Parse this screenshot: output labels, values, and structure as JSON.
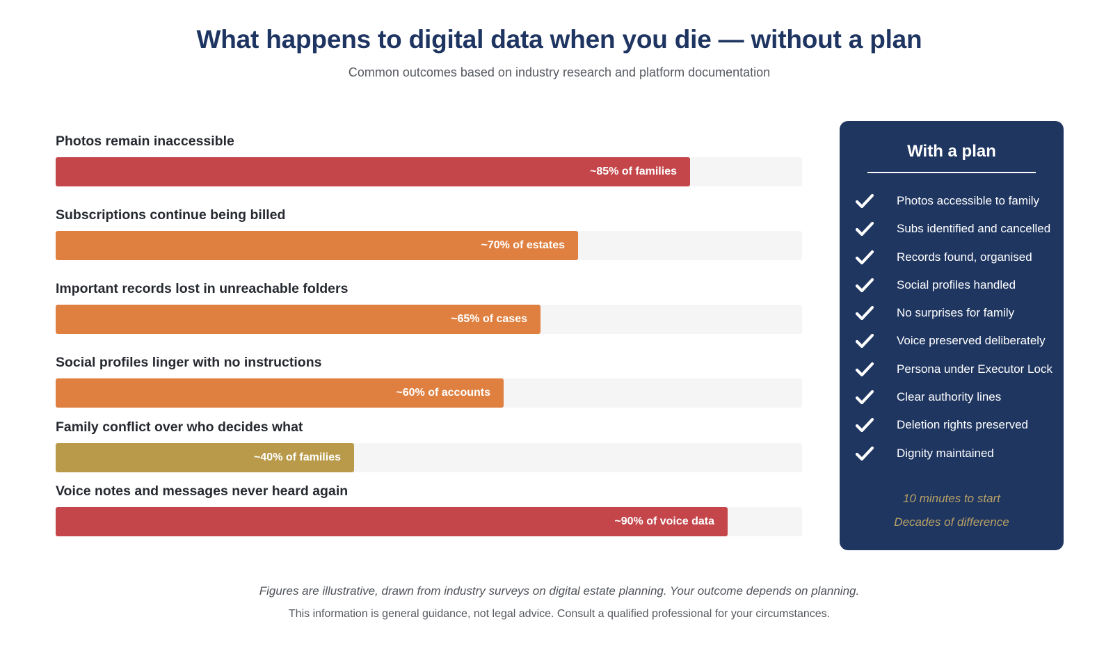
{
  "header": {
    "title": "What happens to digital data when you die — without a plan",
    "subtitle": "Common outcomes based on industry research and platform documentation"
  },
  "chart_data": {
    "type": "bar",
    "orientation": "horizontal",
    "categories": [
      "Photos remain inaccessible",
      "Subscriptions continue being billed",
      "Important records lost in unreachable folders",
      "Social profiles linger with no instructions",
      "Family conflict over who decides what",
      "Voice notes and messages never heard again"
    ],
    "values": [
      85,
      70,
      65,
      60,
      40,
      90
    ],
    "data_labels": [
      "~85% of families",
      "~70% of estates",
      "~65% of cases",
      "~60% of accounts",
      "~40% of families",
      "~90% of voice data"
    ],
    "colors": [
      "#c4464b",
      "#e08040",
      "#e08040",
      "#e08040",
      "#b99a4a",
      "#c4464b"
    ],
    "track_color": "#f5f5f5",
    "xlim": [
      0,
      100
    ],
    "grid": false,
    "legend": "none"
  },
  "plan_panel": {
    "title": "With a plan",
    "items": [
      "Photos accessible to family",
      "Subs identified and cancelled",
      "Records found, organised",
      "Social profiles handled",
      "No surprises for family",
      "Voice preserved deliberately",
      "Persona under Executor Lock",
      "Clear authority lines",
      "Deletion rights preserved",
      "Dignity maintained"
    ],
    "icon": "check-icon",
    "footer_line1": "10 minutes to start",
    "footer_line2": "Decades of difference"
  },
  "footer": {
    "note": "Figures are illustrative, drawn from industry surveys on digital estate planning. Your outcome depends on planning.",
    "disclaimer": "This information is general guidance, not legal advice. Consult a qualified professional for your circumstances."
  }
}
